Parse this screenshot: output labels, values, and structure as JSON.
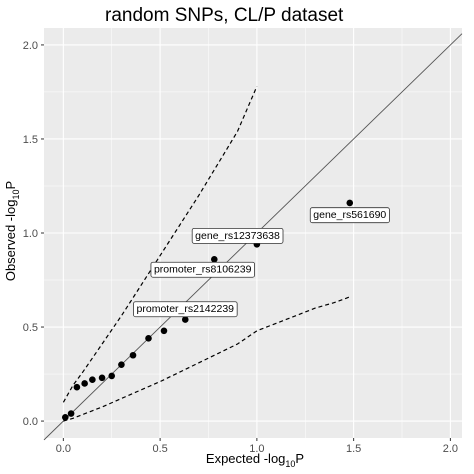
{
  "chart_data": {
    "type": "scatter",
    "title": "random SNPs, CL/P dataset",
    "xlabel": {
      "main": "Expected -log",
      "sub": "10",
      "tail": "P"
    },
    "ylabel": {
      "main": "Observed -log",
      "sub": "10",
      "tail": "P"
    },
    "xlim": [
      -0.1,
      2.06
    ],
    "ylim": [
      -0.09,
      2.09
    ],
    "xticks": [
      0.0,
      0.5,
      1.0,
      1.5,
      2.0
    ],
    "xtick_labels": [
      "0.0",
      "0.5",
      "1.0",
      "1.5",
      "2.0"
    ],
    "yticks": [
      0.0,
      0.5,
      1.0,
      1.5,
      2.0
    ],
    "ytick_labels": [
      "0.0",
      "0.5",
      "1.0",
      "1.5",
      "2.0"
    ],
    "grid": true,
    "colors": {
      "panel": "#ebebeb",
      "grid": "#ffffff",
      "points": "#000000",
      "lines": "#000000"
    },
    "points": [
      {
        "x": 0.01,
        "y": 0.02
      },
      {
        "x": 0.04,
        "y": 0.04
      },
      {
        "x": 0.07,
        "y": 0.18
      },
      {
        "x": 0.11,
        "y": 0.2
      },
      {
        "x": 0.15,
        "y": 0.22
      },
      {
        "x": 0.2,
        "y": 0.23
      },
      {
        "x": 0.25,
        "y": 0.24
      },
      {
        "x": 0.3,
        "y": 0.3
      },
      {
        "x": 0.36,
        "y": 0.35
      },
      {
        "x": 0.44,
        "y": 0.44
      },
      {
        "x": 0.52,
        "y": 0.48
      },
      {
        "x": 0.63,
        "y": 0.54
      },
      {
        "x": 0.78,
        "y": 0.86
      },
      {
        "x": 1.0,
        "y": 0.94
      },
      {
        "x": 1.48,
        "y": 1.16
      }
    ],
    "reference_line": {
      "x": [
        -0.1,
        2.06
      ],
      "y": [
        -0.1,
        2.06
      ]
    },
    "upper_bound": {
      "x": [
        0.0,
        0.05,
        0.1,
        0.2,
        0.3,
        0.4,
        0.5,
        0.6,
        0.7,
        0.8,
        0.9,
        1.0
      ],
      "y": [
        0.1,
        0.19,
        0.26,
        0.41,
        0.56,
        0.72,
        0.88,
        1.04,
        1.2,
        1.37,
        1.54,
        1.78
      ]
    },
    "lower_bound": {
      "x": [
        0.0,
        0.05,
        0.1,
        0.2,
        0.3,
        0.4,
        0.5,
        0.6,
        0.7,
        0.8,
        0.9,
        1.0,
        1.1,
        1.2,
        1.3,
        1.4,
        1.48
      ],
      "y": [
        0.0,
        0.015,
        0.035,
        0.075,
        0.12,
        0.165,
        0.21,
        0.26,
        0.31,
        0.36,
        0.41,
        0.48,
        0.52,
        0.56,
        0.6,
        0.63,
        0.66
      ]
    },
    "annotations": [
      {
        "text": "gene_rs561690",
        "x": 1.48,
        "y": 1.1
      },
      {
        "text": "gene_rs12373638",
        "x": 0.9,
        "y": 0.99
      },
      {
        "text": "promoter_rs8106239",
        "x": 0.72,
        "y": 0.81
      },
      {
        "text": "promoter_rs2142239",
        "x": 0.63,
        "y": 0.6
      }
    ]
  }
}
